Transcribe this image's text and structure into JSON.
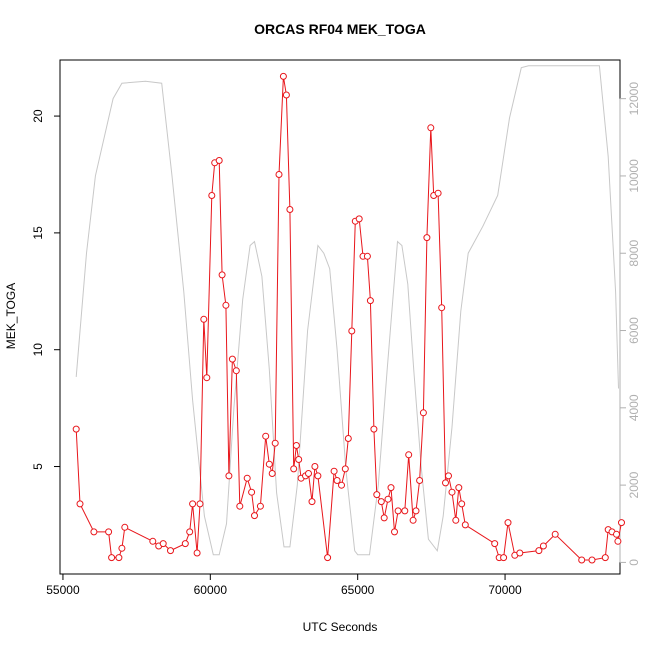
{
  "chart_data": {
    "type": "line",
    "title": "ORCAS RF04 MEK_TOGA",
    "xlabel": "UTC Seconds",
    "ylabel": "MEK_TOGA",
    "xlim": [
      54900,
      73900
    ],
    "ylim": [
      0.4,
      22.4
    ],
    "y2lim": [
      -300,
      13000
    ],
    "x_ticks": [
      55000,
      60000,
      65000,
      70000
    ],
    "y_ticks": [
      5,
      10,
      15,
      20
    ],
    "y2_ticks": [
      0,
      2000,
      4000,
      6000,
      8000,
      10000,
      12000
    ],
    "grid": false,
    "series": [
      {
        "role": "primary",
        "color": "#e8161b",
        "marker": "open-circle",
        "points": [
          [
            55450,
            6.6
          ],
          [
            55580,
            3.4
          ],
          [
            56050,
            2.2
          ],
          [
            56550,
            2.2
          ],
          [
            56650,
            1.1
          ],
          [
            56900,
            1.1
          ],
          [
            57000,
            1.5
          ],
          [
            57100,
            2.4
          ],
          [
            58050,
            1.8
          ],
          [
            58250,
            1.6
          ],
          [
            58400,
            1.7
          ],
          [
            58650,
            1.4
          ],
          [
            59150,
            1.7
          ],
          [
            59300,
            2.2
          ],
          [
            59400,
            3.4
          ],
          [
            59550,
            1.3
          ],
          [
            59650,
            3.4
          ],
          [
            59780,
            11.3
          ],
          [
            59880,
            8.8
          ],
          [
            60050,
            16.6
          ],
          [
            60150,
            18.0
          ],
          [
            60300,
            18.1
          ],
          [
            60400,
            13.2
          ],
          [
            60530,
            11.9
          ],
          [
            60630,
            4.6
          ],
          [
            60750,
            9.6
          ],
          [
            60880,
            9.1
          ],
          [
            61000,
            3.3
          ],
          [
            61250,
            4.5
          ],
          [
            61400,
            3.9
          ],
          [
            61500,
            2.9
          ],
          [
            61700,
            3.3
          ],
          [
            61880,
            6.3
          ],
          [
            62000,
            5.1
          ],
          [
            62100,
            4.7
          ],
          [
            62200,
            6.0
          ],
          [
            62330,
            17.5
          ],
          [
            62480,
            21.7
          ],
          [
            62580,
            20.9
          ],
          [
            62700,
            16.0
          ],
          [
            62830,
            4.9
          ],
          [
            62920,
            5.9
          ],
          [
            63000,
            5.3
          ],
          [
            63080,
            4.5
          ],
          [
            63230,
            4.6
          ],
          [
            63330,
            4.7
          ],
          [
            63450,
            3.5
          ],
          [
            63550,
            5.0
          ],
          [
            63650,
            4.6
          ],
          [
            63980,
            1.1
          ],
          [
            64200,
            4.8
          ],
          [
            64300,
            4.4
          ],
          [
            64450,
            4.2
          ],
          [
            64580,
            4.9
          ],
          [
            64680,
            6.2
          ],
          [
            64800,
            10.8
          ],
          [
            64920,
            15.5
          ],
          [
            65050,
            15.6
          ],
          [
            65180,
            14.0
          ],
          [
            65330,
            14.0
          ],
          [
            65430,
            12.1
          ],
          [
            65550,
            6.6
          ],
          [
            65650,
            3.8
          ],
          [
            65800,
            3.5
          ],
          [
            65900,
            2.8
          ],
          [
            66030,
            3.6
          ],
          [
            66130,
            4.1
          ],
          [
            66250,
            2.2
          ],
          [
            66370,
            3.1
          ],
          [
            66600,
            3.1
          ],
          [
            66730,
            5.5
          ],
          [
            66880,
            2.7
          ],
          [
            66980,
            3.1
          ],
          [
            67100,
            4.4
          ],
          [
            67230,
            7.3
          ],
          [
            67350,
            14.8
          ],
          [
            67480,
            19.5
          ],
          [
            67580,
            16.6
          ],
          [
            67730,
            16.7
          ],
          [
            67850,
            11.8
          ],
          [
            67980,
            4.3
          ],
          [
            68080,
            4.6
          ],
          [
            68200,
            3.9
          ],
          [
            68330,
            2.7
          ],
          [
            68430,
            4.1
          ],
          [
            68530,
            3.4
          ],
          [
            68650,
            2.5
          ],
          [
            69650,
            1.7
          ],
          [
            69800,
            1.1
          ],
          [
            69950,
            1.1
          ],
          [
            70100,
            2.6
          ],
          [
            70330,
            1.2
          ],
          [
            70500,
            1.3
          ],
          [
            71150,
            1.4
          ],
          [
            71300,
            1.6
          ],
          [
            71700,
            2.1
          ],
          [
            72600,
            1.0
          ],
          [
            72950,
            1.0
          ],
          [
            73400,
            1.1
          ],
          [
            73500,
            2.3
          ],
          [
            73630,
            2.2
          ],
          [
            73780,
            2.1
          ],
          [
            73830,
            1.8
          ],
          [
            73950,
            2.6
          ]
        ]
      },
      {
        "role": "secondary",
        "color": "#c8c8c8",
        "marker": "none",
        "points": [
          [
            55450,
            4800
          ],
          [
            55800,
            8000
          ],
          [
            56100,
            10000
          ],
          [
            56700,
            12000
          ],
          [
            57000,
            12400
          ],
          [
            57800,
            12450
          ],
          [
            58350,
            12400
          ],
          [
            58700,
            10000
          ],
          [
            59100,
            7000
          ],
          [
            59400,
            4200
          ],
          [
            59800,
            1200
          ],
          [
            60100,
            200
          ],
          [
            60300,
            200
          ],
          [
            60550,
            1000
          ],
          [
            60800,
            4000
          ],
          [
            61100,
            6800
          ],
          [
            61350,
            8200
          ],
          [
            61500,
            8300
          ],
          [
            61750,
            7400
          ],
          [
            62000,
            5000
          ],
          [
            62250,
            1800
          ],
          [
            62500,
            400
          ],
          [
            62700,
            400
          ],
          [
            62950,
            2000
          ],
          [
            63300,
            6000
          ],
          [
            63650,
            8200
          ],
          [
            63850,
            8000
          ],
          [
            64050,
            7600
          ],
          [
            64300,
            5500
          ],
          [
            64600,
            2400
          ],
          [
            64900,
            300
          ],
          [
            65000,
            200
          ],
          [
            65400,
            200
          ],
          [
            65700,
            2000
          ],
          [
            66000,
            5000
          ],
          [
            66350,
            8300
          ],
          [
            66500,
            8200
          ],
          [
            66700,
            7200
          ],
          [
            66900,
            5000
          ],
          [
            67150,
            2500
          ],
          [
            67400,
            600
          ],
          [
            67700,
            300
          ],
          [
            67900,
            1200
          ],
          [
            68200,
            3500
          ],
          [
            68500,
            6500
          ],
          [
            68750,
            8000
          ],
          [
            69250,
            8700
          ],
          [
            69750,
            9500
          ],
          [
            70150,
            11500
          ],
          [
            70550,
            12800
          ],
          [
            70800,
            12850
          ],
          [
            71600,
            12850
          ],
          [
            72150,
            12850
          ],
          [
            73200,
            12850
          ],
          [
            73500,
            10500
          ],
          [
            73750,
            7000
          ],
          [
            73850,
            4500
          ]
        ]
      }
    ]
  }
}
